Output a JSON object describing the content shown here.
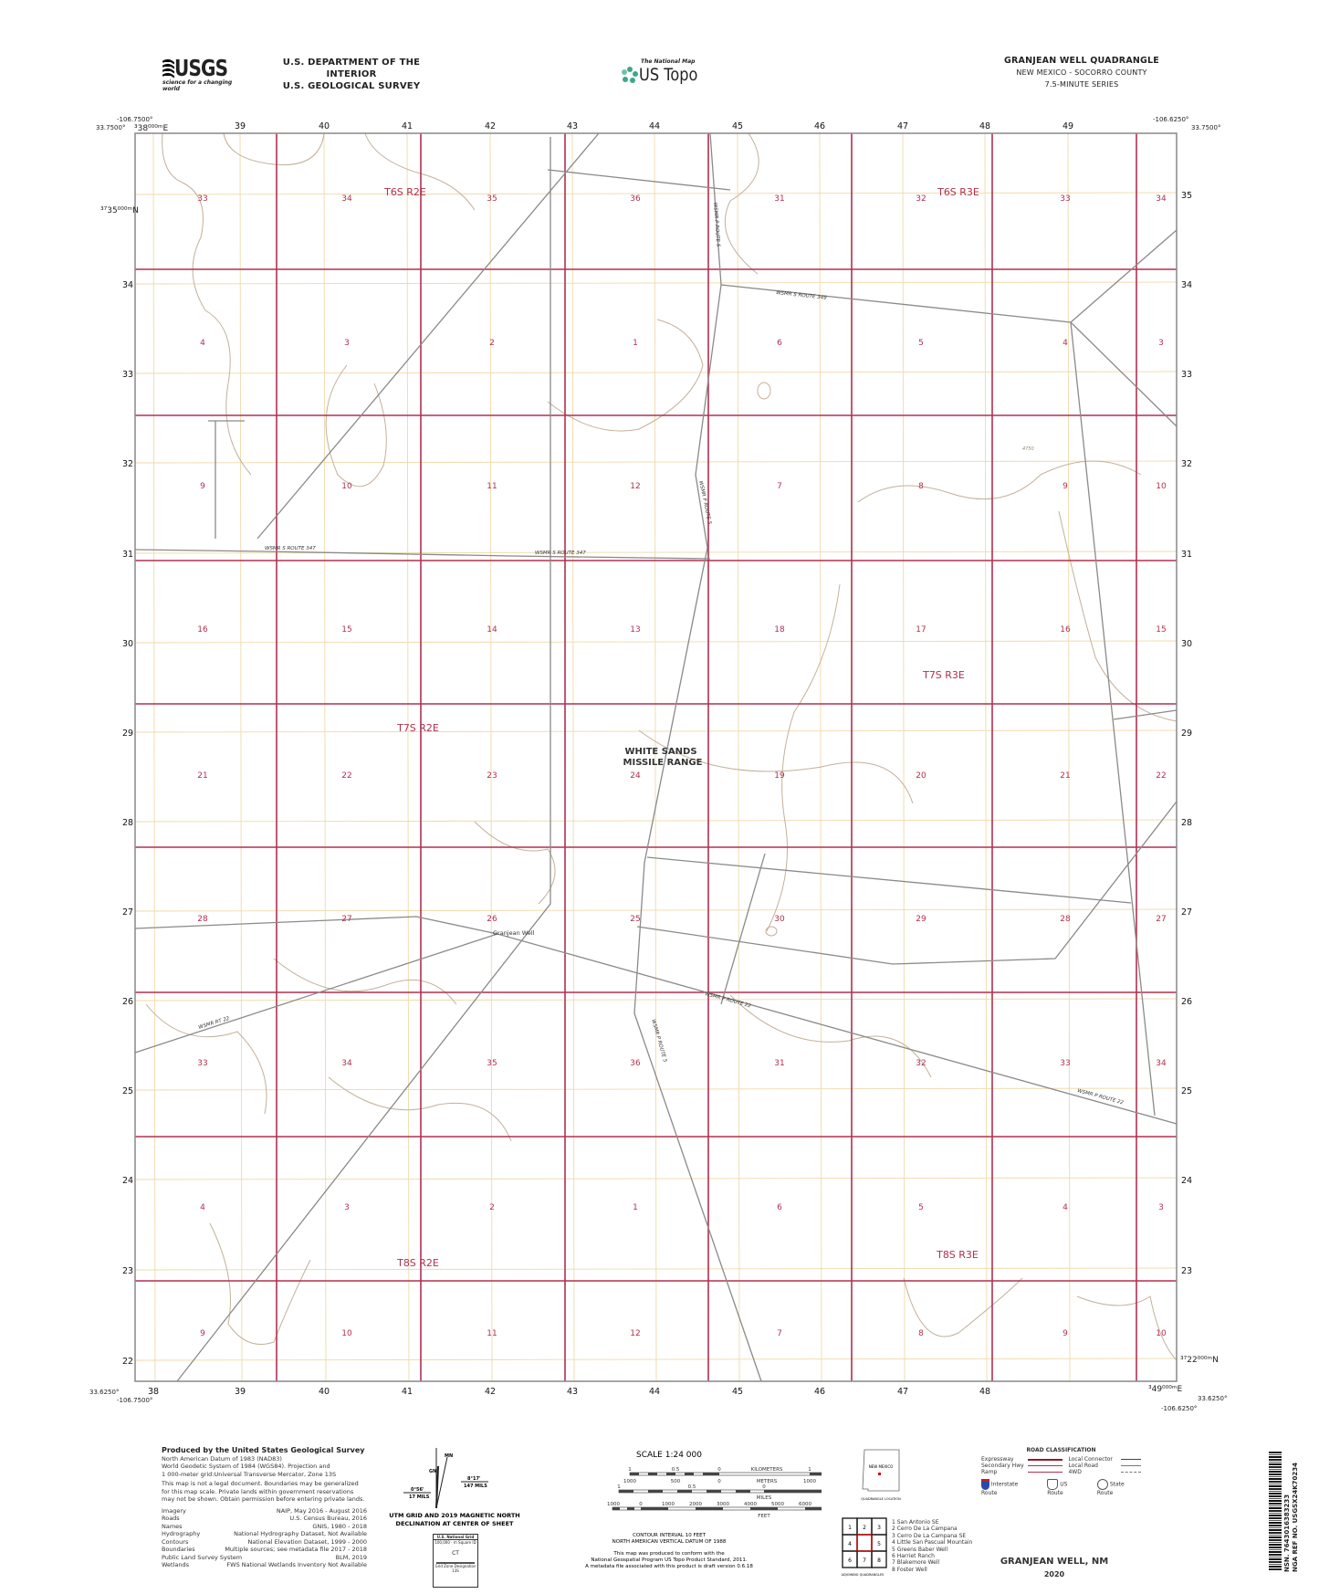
{
  "header": {
    "agency_logo": "USGS",
    "agency_tagline": "science for a changing world",
    "department": "U.S. DEPARTMENT OF THE INTERIOR",
    "survey": "U.S. GEOLOGICAL SURVEY",
    "product_small": "The National Map",
    "product": "US Topo",
    "quad_title": "GRANJEAN WELL QUADRANGLE",
    "state_county": "NEW MEXICO - SOCORRO COUNTY",
    "series": "7.5-MINUTE SERIES"
  },
  "corners": {
    "nw_lon": "-106.7500°",
    "nw_lat": "33.7500°",
    "ne_lon": "-106.6250°",
    "ne_lat": "33.7500°",
    "sw_lon": "-106.7500°",
    "sw_lat": "33.6250°",
    "se_lon": "-106.6250°",
    "se_lat": "33.6250°",
    "utm_e_first": "³38⁰⁰⁰ᵐE",
    "utm_e_last": "³49⁰⁰⁰ᵐE",
    "utm_n_top": "³⁷35⁰⁰⁰ᵐN",
    "utm_n_bottom": "³⁷22⁰⁰⁰ᵐN"
  },
  "eastings": [
    "38",
    "39",
    "40",
    "41",
    "42",
    "43",
    "44",
    "45",
    "46",
    "47",
    "48",
    "49"
  ],
  "northings": [
    "35",
    "34",
    "33",
    "32",
    "31",
    "30",
    "29",
    "28",
    "27",
    "26",
    "25",
    "24",
    "23",
    "22"
  ],
  "sections": [
    [
      "33",
      "34",
      "35",
      "36",
      "31",
      "32",
      "33",
      "34"
    ],
    [
      "4",
      "3",
      "2",
      "1",
      "6",
      "5",
      "4",
      "3"
    ],
    [
      "9",
      "10",
      "11",
      "12",
      "7",
      "8",
      "9",
      "10"
    ],
    [
      "16",
      "15",
      "14",
      "13",
      "18",
      "17",
      "16",
      "15"
    ],
    [
      "21",
      "22",
      "23",
      "24",
      "19",
      "20",
      "21",
      "22"
    ],
    [
      "28",
      "27",
      "26",
      "25",
      "30",
      "29",
      "28",
      "27"
    ],
    [
      "33",
      "34",
      "35",
      "36",
      "31",
      "32",
      "33",
      "34"
    ],
    [
      "4",
      "3",
      "2",
      "1",
      "6",
      "5",
      "4",
      "3"
    ],
    [
      "9",
      "10",
      "11",
      "12",
      "7",
      "8",
      "9",
      "10"
    ]
  ],
  "townships": [
    "T6S R2E",
    "T6S R3E",
    "T7S R2E",
    "T7S R3E",
    "T8S R2E",
    "T8S R3E"
  ],
  "map_labels": {
    "reservation_line1": "WHITE SANDS",
    "reservation_line2": "MISSILE RANGE",
    "well": "Granjean Well",
    "road_349": "WSMR S ROUTE 349",
    "road_347a": "WSMR S ROUTE 347",
    "road_347b": "WSMR S ROUTE 347",
    "road_5a": "WSMR P ROUTE 5",
    "road_5b": "WSMR P ROUTE 5",
    "road_5c": "WSMR P ROUTE 5",
    "road_22a": "WSMR P ROUTE 22",
    "road_22b": "WSMR P ROUTE 22",
    "road_rt22": "WSMR RT 22",
    "contour_label": "4750"
  },
  "colors": {
    "section_red": "#b03050",
    "utm_grid": "#e8c98a",
    "contour": "#c4b09a",
    "road": "#8a8a8a",
    "frame": "#888888"
  },
  "credits": {
    "title": "Produced by the United States Geological Survey",
    "lines": [
      "North American Datum of 1983 (NAD83)",
      "World Geodetic System of 1984 (WGS84).  Projection and",
      "1 000-meter grid:Universal Transverse Mercator, Zone 13S"
    ],
    "disclaimer": "This map is not a legal document. Boundaries may be generalized for this map scale. Private lands within government reservations may not be shown. Obtain permission before entering private lands.",
    "sources": [
      {
        "name": "Imagery",
        "value": "NAIP, May 2016 - August 2016"
      },
      {
        "name": "Roads",
        "value": "U.S. Census Bureau, 2016"
      },
      {
        "name": "Names",
        "value": "GNIS, 1980 - 2018"
      },
      {
        "name": "Hydrography",
        "value": "National Hydrography Dataset, Not Available"
      },
      {
        "name": "Contours",
        "value": "National Elevation Dataset, 1999 - 2000"
      },
      {
        "name": "Boundaries",
        "value": "Multiple sources; see metadata file 2017 - 2018"
      },
      {
        "name": "Public Land Survey System",
        "value": "BLM, 2019"
      },
      {
        "name": "Wetlands",
        "value": "FWS National Wetlands Inventory Not Available"
      }
    ]
  },
  "declination": {
    "mn": "MN",
    "gn": "GN",
    "mn_angle": "8°17'",
    "mn_mils": "147 MILS",
    "gn_angle": "0°56'",
    "gn_mils": "17 MILS",
    "caption1": "UTM GRID AND 2019 MAGNETIC NORTH",
    "caption2": "DECLINATION AT CENTER OF SHEET"
  },
  "usng": {
    "title": "U.S. National Grid",
    "square_label": "100,000 - m Square ID",
    "square_id": "CT",
    "zone_label": "Grid Zone Designation",
    "zone": "13S"
  },
  "scale": {
    "title": "SCALE 1:24 000",
    "km_ticks": [
      "1",
      "0.5",
      "0",
      "1",
      "2"
    ],
    "km_label": "KILOMETERS",
    "m_ticks": [
      "1000",
      "500",
      "0",
      "1000",
      "2000"
    ],
    "m_label": "METERS",
    "mi_ticks": [
      "1",
      "0.5",
      "0",
      "1"
    ],
    "mi_label": "MILES",
    "ft_ticks": [
      "1000",
      "0",
      "1000",
      "2000",
      "3000",
      "4000",
      "5000",
      "6000",
      "7000",
      "8000",
      "9000",
      "10000"
    ],
    "ft_label": "FEET",
    "contour1": "CONTOUR INTERVAL 10 FEET",
    "contour2": "NORTH AMERICAN VERTICAL DATUM OF 1988",
    "std1": "This map was produced to conform with the",
    "std2": "National Geospatial Program US Topo Product Standard, 2011.",
    "std3": "A metadata file associated with this product is draft version 0.6.18"
  },
  "location": {
    "state": "NEW MEXICO",
    "caption": "QUADRANGLE LOCATION",
    "adjoining_caption": "ADJOINING QUADRANGLES",
    "grid": [
      "1",
      "2",
      "3",
      "4",
      "",
      "5",
      "6",
      "7",
      "8"
    ],
    "adjoining": [
      "1 San Antonio SE",
      "2 Cerro De La Campana",
      "3 Cerro De La Campana SE",
      "4 Little San Pascual Mountain",
      "5 Greens Baber Well",
      "6 Harriet Ranch",
      "7 Blakemore Well",
      "8 Foster Well"
    ]
  },
  "roads_legend": {
    "title": "ROAD CLASSIFICATION",
    "left": [
      "Expressway",
      "Secondary Hwy",
      "Ramp"
    ],
    "right": [
      "Local Connector",
      "Local Road",
      "4WD"
    ],
    "shields": [
      "Interstate Route",
      "US Route",
      "State Route"
    ]
  },
  "footer": {
    "title": "GRANJEAN WELL,  NM",
    "year": "2020",
    "nsn": "NSN. 7643016383233",
    "nga": "NGA REF NO. USGSX24K70234"
  }
}
